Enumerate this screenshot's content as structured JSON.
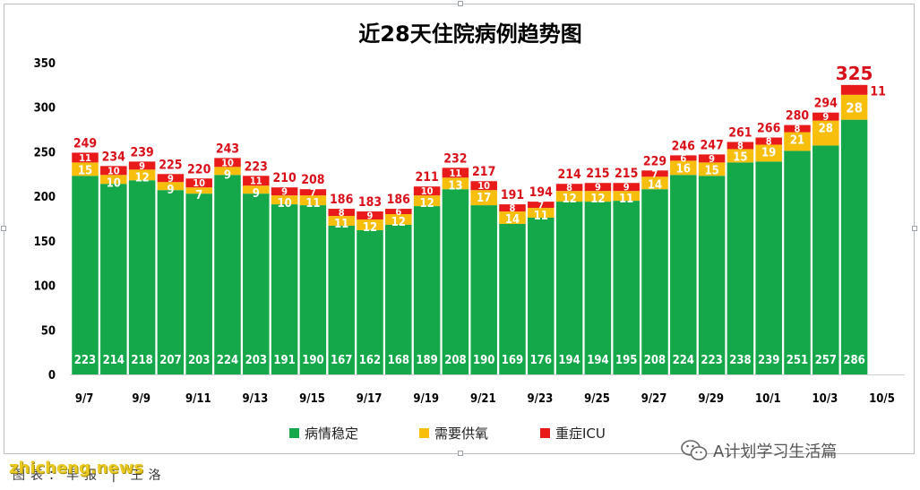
{
  "chart_data": {
    "type": "bar",
    "stacked": true,
    "title": "近28天住院病例趋势图",
    "categories": [
      "9/7",
      "9/8",
      "9/9",
      "9/10",
      "9/11",
      "9/12",
      "9/13",
      "9/14",
      "9/15",
      "9/16",
      "9/17",
      "9/18",
      "9/19",
      "9/20",
      "9/21",
      "9/22",
      "9/23",
      "9/24",
      "9/25",
      "9/26",
      "9/27",
      "9/28",
      "9/29",
      "9/30",
      "10/1",
      "10/2",
      "10/3",
      "10/4"
    ],
    "x_tick_labels": [
      "9/7",
      "9/9",
      "9/11",
      "9/13",
      "9/15",
      "9/17",
      "9/19",
      "9/21",
      "9/23",
      "9/25",
      "9/27",
      "9/29",
      "10/1",
      "10/3",
      "10/5"
    ],
    "series": [
      {
        "name": "病情稳定",
        "color": "#14a84a",
        "values": [
          223,
          214,
          218,
          207,
          203,
          224,
          203,
          191,
          190,
          167,
          162,
          168,
          189,
          208,
          190,
          169,
          176,
          194,
          194,
          195,
          208,
          224,
          223,
          238,
          239,
          251,
          257,
          286
        ]
      },
      {
        "name": "需要供氧",
        "color": "#f7be0c",
        "values": [
          15,
          10,
          12,
          9,
          7,
          9,
          9,
          10,
          11,
          11,
          12,
          12,
          12,
          13,
          17,
          14,
          11,
          12,
          12,
          11,
          14,
          16,
          15,
          15,
          19,
          21,
          28,
          28
        ]
      },
      {
        "name": "重症ICU",
        "color": "#e81a1a",
        "values": [
          11,
          10,
          9,
          9,
          10,
          10,
          11,
          9,
          7,
          8,
          9,
          6,
          10,
          11,
          10,
          8,
          7,
          8,
          9,
          9,
          7,
          6,
          9,
          8,
          8,
          8,
          9,
          11
        ]
      }
    ],
    "totals": [
      249,
      234,
      239,
      225,
      220,
      243,
      223,
      210,
      208,
      186,
      183,
      186,
      211,
      232,
      217,
      191,
      194,
      214,
      215,
      215,
      229,
      246,
      247,
      261,
      266,
      280,
      294,
      325
    ],
    "ylim": [
      0,
      350
    ],
    "yticks": [
      0,
      50,
      100,
      150,
      200,
      250,
      300,
      350
    ],
    "grid": false,
    "legend_position": "bottom"
  },
  "watermark_right": "A计划学习生活篇",
  "watermark_left": "zhicheng.news",
  "source_note": "图表：早报 | 王洛"
}
